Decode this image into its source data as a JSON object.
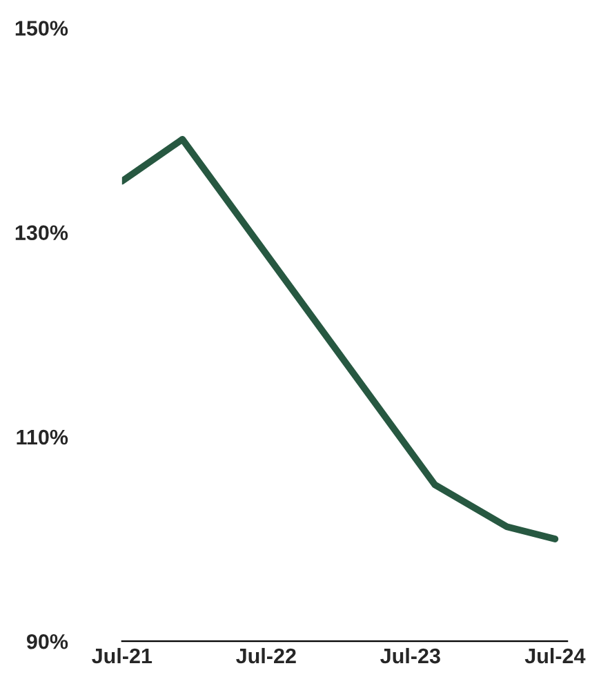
{
  "chart_data": {
    "type": "line",
    "x": [
      "2021-07",
      "2021-12",
      "2023-09",
      "2024-03",
      "2024-07"
    ],
    "series": [
      {
        "color": "#275841",
        "values": [
          135.0,
          139.1,
          105.3,
          101.2,
          100.0
        ]
      }
    ],
    "xlim": [
      "2021-07",
      "2024-08"
    ],
    "xticks": [
      {
        "value": "2021-07",
        "label": "Jul-21"
      },
      {
        "value": "2022-07",
        "label": "Jul-22"
      },
      {
        "value": "2023-07",
        "label": "Jul-23"
      },
      {
        "value": "2024-07",
        "label": "Jul-24"
      }
    ],
    "ylim": [
      90,
      150
    ],
    "yticks": [
      {
        "value": 90,
        "label": "90%"
      },
      {
        "value": 110,
        "label": "110%"
      },
      {
        "value": 130,
        "label": "130%"
      },
      {
        "value": 150,
        "label": "150%"
      }
    ],
    "grid": false,
    "legend": false,
    "line_style": "solid",
    "marker": "none"
  }
}
